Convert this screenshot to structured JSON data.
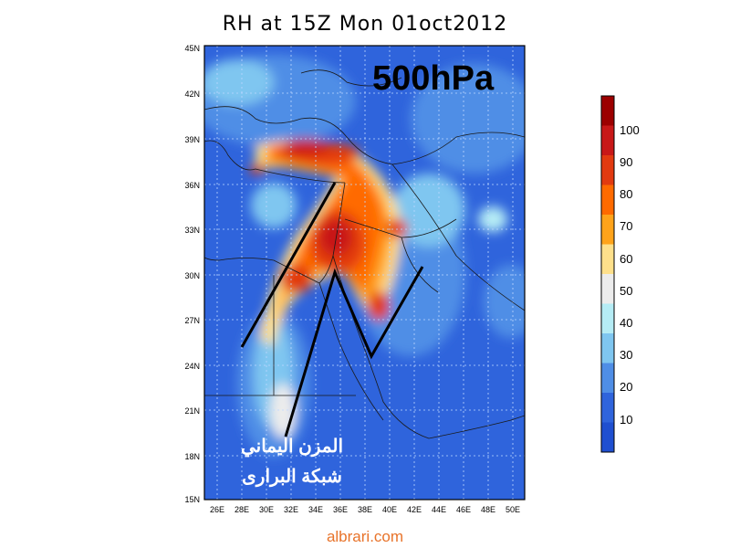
{
  "title": "RH at 15Z Mon 01oct2012",
  "level_label": "500hPa",
  "watermark": {
    "line1": "المزن اليماني",
    "line2": "شبكة البرارى"
  },
  "footer": "albrari.com",
  "map": {
    "lat_ticks": [
      "45N",
      "42N",
      "39N",
      "36N",
      "33N",
      "30N",
      "27N",
      "24N",
      "21N",
      "18N",
      "15N"
    ],
    "lon_ticks": [
      "26E",
      "28E",
      "30E",
      "32E",
      "34E",
      "36E",
      "38E",
      "40E",
      "42E",
      "44E",
      "46E",
      "48E",
      "50E"
    ],
    "lon_range": [
      24,
      50
    ],
    "lat_range": [
      15,
      45
    ]
  },
  "colorbar": {
    "labels": [
      "100",
      "90",
      "80",
      "70",
      "60",
      "50",
      "40",
      "30",
      "20",
      "10"
    ],
    "colors": [
      "#9c0000",
      "#c81818",
      "#e23a10",
      "#ff6a00",
      "#ffa31a",
      "#fee08b",
      "#ececec",
      "#b5ecf5",
      "#7fc6f0",
      "#4f8ee6",
      "#2f64dc",
      "#1f4fd0"
    ]
  }
}
